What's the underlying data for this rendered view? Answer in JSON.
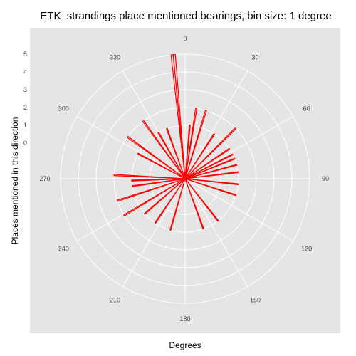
{
  "colors": {
    "panel_background": "#e5e5e5",
    "grid": "#ffffff",
    "bar": "#ff0000",
    "tick_text": "#4d4d4d",
    "text": "#000000"
  },
  "chart_data": {
    "type": "bar",
    "coord": "polar",
    "title": "ETK_strandings place mentioned bearings, bin size: 1 degree",
    "xlabel": "Degrees",
    "ylabel": "Places mentioned in this direction",
    "x_ticks": [
      0,
      30,
      60,
      90,
      120,
      150,
      180,
      210,
      240,
      270,
      300,
      330
    ],
    "y_ticks": [
      0,
      1,
      2,
      3,
      4,
      5
    ],
    "xlim": [
      0,
      360
    ],
    "ylim": [
      -2,
      5
    ],
    "grid": true,
    "bin_size_degrees": 1,
    "bars": [
      {
        "x": 354,
        "y": 5
      },
      {
        "x": 355,
        "y": 5
      },
      {
        "x": 5,
        "y": 1
      },
      {
        "x": 9,
        "y": 2
      },
      {
        "x": 17,
        "y": 2
      },
      {
        "x": 33,
        "y": 1
      },
      {
        "x": 45,
        "y": 2
      },
      {
        "x": 56,
        "y": 1
      },
      {
        "x": 63,
        "y": 1
      },
      {
        "x": 68,
        "y": 1
      },
      {
        "x": 75,
        "y": 1
      },
      {
        "x": 83,
        "y": 1
      },
      {
        "x": 96,
        "y": 1
      },
      {
        "x": 108,
        "y": 1
      },
      {
        "x": 142,
        "y": 1
      },
      {
        "x": 160,
        "y": 1
      },
      {
        "x": 196,
        "y": 1
      },
      {
        "x": 214,
        "y": 1
      },
      {
        "x": 229,
        "y": 1
      },
      {
        "x": 239,
        "y": 2
      },
      {
        "x": 252,
        "y": 2
      },
      {
        "x": 262,
        "y": 1
      },
      {
        "x": 268,
        "y": 1
      },
      {
        "x": 273,
        "y": 2
      },
      {
        "x": 298,
        "y": 1
      },
      {
        "x": 306,
        "y": 2
      },
      {
        "x": 324,
        "y": 2
      },
      {
        "x": 330,
        "y": 1
      },
      {
        "x": 340,
        "y": 1
      }
    ]
  }
}
